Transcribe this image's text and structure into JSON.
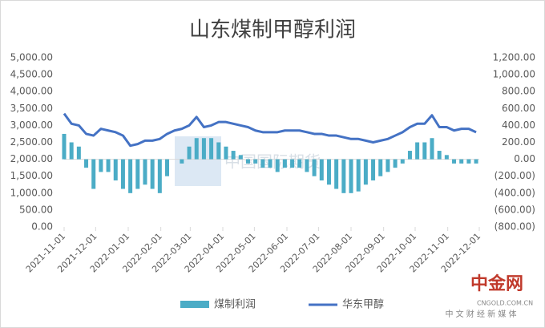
{
  "chart_data": {
    "type": "bar_line",
    "title": "山东煤制甲醇利润",
    "x": [
      "2021-11-01",
      "2021-11-08",
      "2021-11-15",
      "2021-11-22",
      "2021-11-29",
      "2021-12-06",
      "2021-12-13",
      "2021-12-20",
      "2021-12-27",
      "2022-01-03",
      "2022-01-10",
      "2022-01-17",
      "2022-01-24",
      "2022-01-31",
      "2022-02-07",
      "2022-02-14",
      "2022-02-21",
      "2022-02-28",
      "2022-03-07",
      "2022-03-14",
      "2022-03-21",
      "2022-03-28",
      "2022-04-04",
      "2022-04-11",
      "2022-04-18",
      "2022-04-25",
      "2022-05-02",
      "2022-05-09",
      "2022-05-16",
      "2022-05-23",
      "2022-05-30",
      "2022-06-06",
      "2022-06-13",
      "2022-06-20",
      "2022-06-27",
      "2022-07-04",
      "2022-07-11",
      "2022-07-18",
      "2022-07-25",
      "2022-08-01",
      "2022-08-08",
      "2022-08-15",
      "2022-08-22",
      "2022-08-29",
      "2022-09-05",
      "2022-09-12",
      "2022-09-19",
      "2022-09-26",
      "2022-10-03",
      "2022-10-10",
      "2022-10-17",
      "2022-10-24",
      "2022-10-31",
      "2022-11-07",
      "2022-11-14",
      "2022-11-21",
      "2022-11-28"
    ],
    "series": [
      {
        "name": "煤制利润",
        "type": "bar",
        "axis": "y2",
        "color": "#4bacc6",
        "values": [
          300,
          200,
          150,
          -100,
          -350,
          -150,
          -150,
          -250,
          -350,
          -400,
          -350,
          -300,
          -350,
          -400,
          -200,
          0,
          -50,
          150,
          250,
          250,
          250,
          200,
          150,
          100,
          50,
          -50,
          -50,
          -100,
          -100,
          -150,
          -100,
          -100,
          -100,
          -150,
          -200,
          -250,
          -300,
          -350,
          -400,
          -400,
          -380,
          -300,
          -250,
          -200,
          -150,
          -100,
          -50,
          100,
          200,
          200,
          250,
          100,
          50,
          -50,
          -50,
          -50,
          -50
        ]
      },
      {
        "name": "华东甲醇",
        "type": "line",
        "axis": "y",
        "color": "#4472c4",
        "values": [
          3350,
          3050,
          3000,
          2750,
          2700,
          2900,
          2850,
          2800,
          2700,
          2400,
          2450,
          2550,
          2550,
          2600,
          2750,
          2850,
          2900,
          3000,
          3250,
          2950,
          3000,
          3100,
          3100,
          3050,
          3000,
          2950,
          2850,
          2800,
          2800,
          2800,
          2850,
          2850,
          2850,
          2800,
          2750,
          2750,
          2700,
          2700,
          2650,
          2600,
          2600,
          2550,
          2500,
          2550,
          2600,
          2700,
          2800,
          2950,
          3050,
          3050,
          3300,
          2950,
          2950,
          2850,
          2900,
          2900,
          2800
        ]
      }
    ],
    "xlim": [
      "2021-11-01",
      "2022-12-01"
    ],
    "xticks": [
      "2021-11-01",
      "2021-12-01",
      "2022-01-01",
      "2022-02-01",
      "2022-03-01",
      "2022-04-01",
      "2022-05-01",
      "2022-06-01",
      "2022-07-01",
      "2022-08-01",
      "2022-09-01",
      "2022-10-01",
      "2022-11-01",
      "2022-12-01"
    ],
    "ylim": [
      0,
      5000
    ],
    "yticks": [
      {
        "value": 0,
        "label": "0.00"
      },
      {
        "value": 500,
        "label": "500.00"
      },
      {
        "value": 1000,
        "label": "1,000.00"
      },
      {
        "value": 1500,
        "label": "1,500.00"
      },
      {
        "value": 2000,
        "label": "2,000.00"
      },
      {
        "value": 2500,
        "label": "2,500.00"
      },
      {
        "value": 3000,
        "label": "3,000.00"
      },
      {
        "value": 3500,
        "label": "3,500.00"
      },
      {
        "value": 4000,
        "label": "4,000.00"
      },
      {
        "value": 4500,
        "label": "4,500.00"
      },
      {
        "value": 5000,
        "label": "5,000.00"
      }
    ],
    "y2lim": [
      -800,
      1200
    ],
    "y2ticks": [
      {
        "value": -800,
        "label": "(800.00)"
      },
      {
        "value": -600,
        "label": "(600.00)"
      },
      {
        "value": -400,
        "label": "(400.00)"
      },
      {
        "value": -200,
        "label": "(200.00)"
      },
      {
        "value": 0,
        "label": "0.00"
      },
      {
        "value": 200,
        "label": "200.00"
      },
      {
        "value": 400,
        "label": "400.00"
      },
      {
        "value": 600,
        "label": "600.00"
      },
      {
        "value": 800,
        "label": "800.00"
      },
      {
        "value": 1000,
        "label": "1,000.00"
      },
      {
        "value": 1200,
        "label": "1,200.00"
      }
    ],
    "legend": "bottom",
    "watermark": "中国国际期货",
    "logo": {
      "name": "中金网",
      "site": "CNGOLD.COM.CN",
      "slogan": "中 文 财 经 新 媒 体"
    }
  }
}
